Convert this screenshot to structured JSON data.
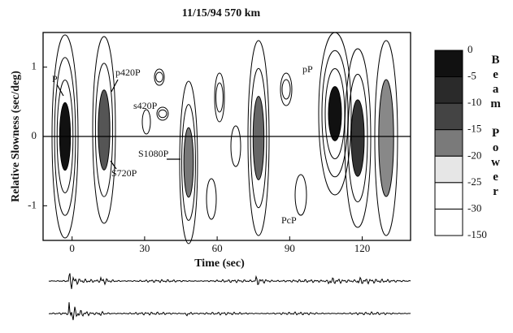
{
  "chart_data": {
    "type": "contour",
    "title": "11/15/94  570 km",
    "xlabel": "Time (sec)",
    "ylabel": "Relative Slowness (sec/deg)",
    "xlim": [
      -12,
      140
    ],
    "ylim": [
      -1.5,
      1.5
    ],
    "xticks": [
      0,
      30,
      60,
      90,
      120
    ],
    "yticks": [
      -1,
      0,
      1
    ],
    "colorbar_label": "Beam Power",
    "colorbar_levels": [
      0,
      -5,
      -10,
      -15,
      -20,
      -25,
      -30,
      -150
    ],
    "colorbar_colors": [
      "#111111",
      "#2a2a2a",
      "#444444",
      "#7a7a7a",
      "#e6e6e6",
      "#ffffff",
      "#ffffff"
    ],
    "annotations": [
      "P",
      "p420P",
      "s420P",
      "S1080P",
      "S720P",
      "pP",
      "PcP"
    ]
  }
}
